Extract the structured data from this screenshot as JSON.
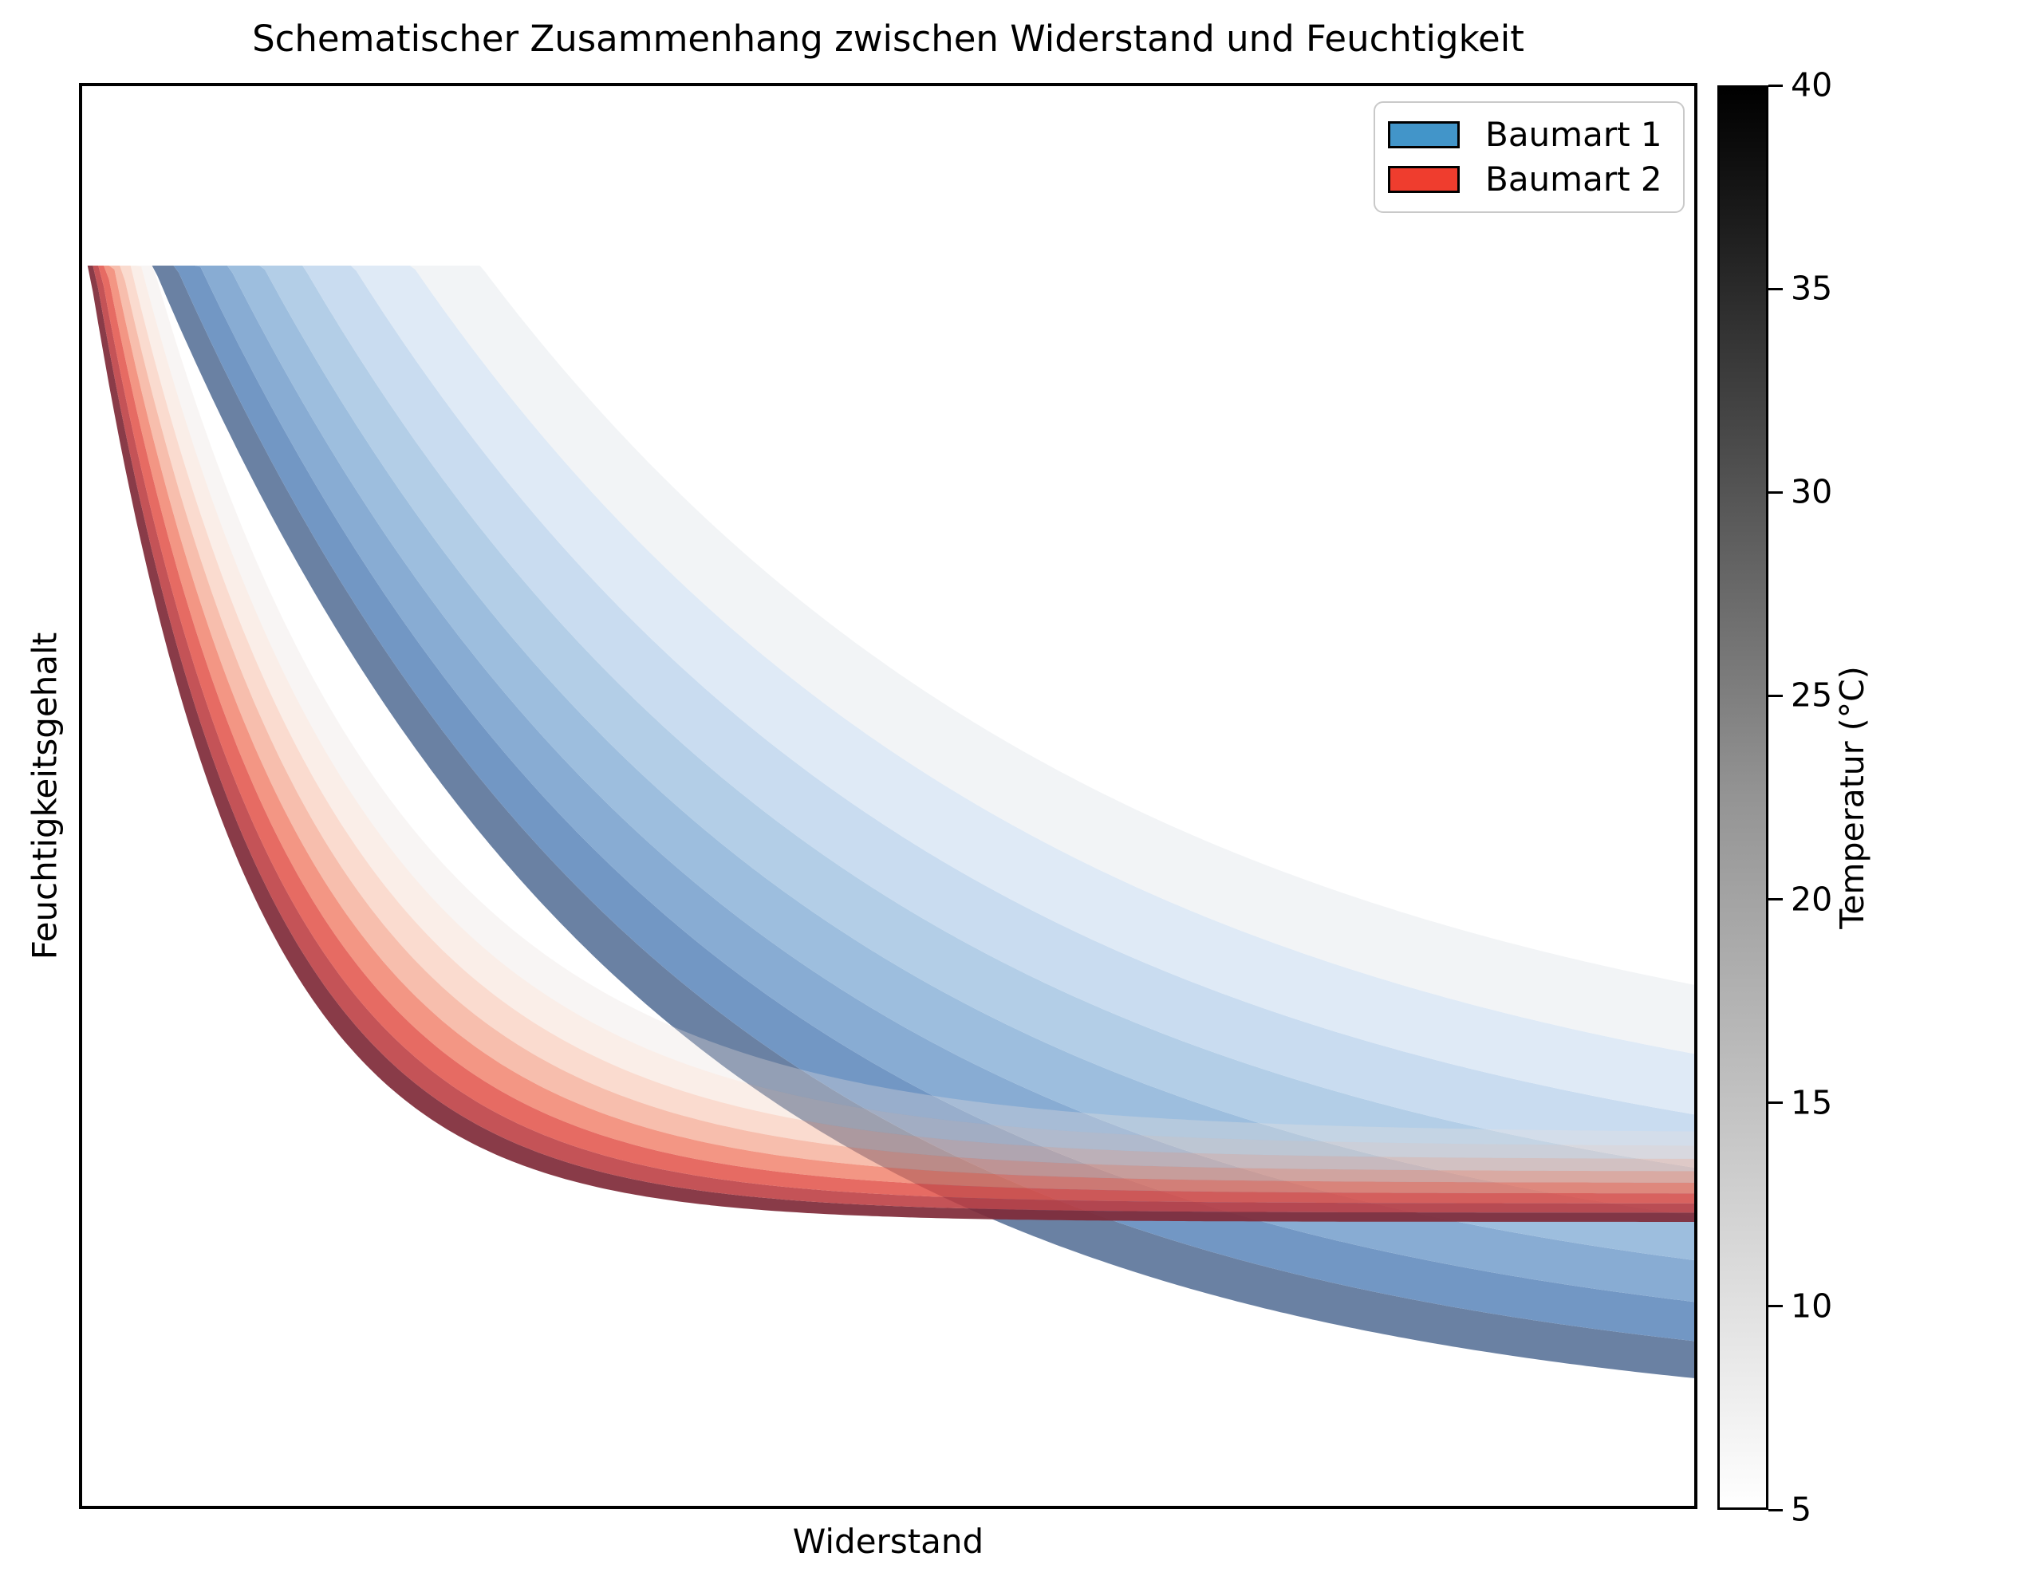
{
  "title": "Schematischer Zusammenhang zwischen Widerstand und Feuchtigkeit",
  "x_axis": {
    "label": "Widerstand",
    "ticks": []
  },
  "y_axis": {
    "label": "Feuchtigkeitsgehalt",
    "ticks": []
  },
  "legend": {
    "items": [
      {
        "label": "Baumart 1",
        "swatch_color": "#4295c9"
      },
      {
        "label": "Baumart 2",
        "swatch_color": "#ef3d2e"
      }
    ]
  },
  "colorbar": {
    "label": "Temperatur (°C)",
    "min": 5,
    "max": 40,
    "ticks": [
      5,
      10,
      15,
      20,
      25,
      30,
      35,
      40
    ],
    "gradient_top": "#000000",
    "gradient_mid": "#949494",
    "gradient_bottom": "#ffffff"
  },
  "chart_data": {
    "type": "area",
    "title": "Schematischer Zusammenhang zwischen Widerstand und Feuchtigkeit",
    "xlabel": "Widerstand",
    "ylabel": "Feuchtigkeitsgehalt",
    "axes_numeric_ticks": false,
    "x_range_normalized": [
      0,
      1
    ],
    "y_range_normalized": [
      0,
      1
    ],
    "cap_v": 0.1264,
    "curve_model": "v(u) = v_asym - (v_asym - cap_v) * exp(-k * max(0, u - u0)); u,v normalized, v measured from plot top",
    "temperature_levels_dark_to_light": [
      40,
      35,
      30,
      25,
      20,
      15,
      10,
      5
    ],
    "series": [
      {
        "name": "Baumart 1",
        "key": "baumart-1",
        "legend_color": "#4295c9",
        "curves": {
          "u0": [
            0.044,
            0.058,
            0.073,
            0.091,
            0.112,
            0.137,
            0.168,
            0.205,
            0.247
          ],
          "v_asym": [
            0.945,
            0.923,
            0.9,
            0.876,
            0.851,
            0.824,
            0.795,
            0.762,
            0.72
          ],
          "k": [
            3.3,
            3.2,
            3.1,
            3.0,
            2.9,
            2.8,
            2.7,
            2.6,
            2.55
          ]
        },
        "bands": [
          {
            "temp_level": 40,
            "color": "#6a81a3",
            "alpha": 1
          },
          {
            "temp_level": 35,
            "color": "#7297c4",
            "alpha": 1
          },
          {
            "temp_level": 30,
            "color": "#88acd3",
            "alpha": 1
          },
          {
            "temp_level": 25,
            "color": "#9dbede",
            "alpha": 1
          },
          {
            "temp_level": 20,
            "color": "#b3cee7",
            "alpha": 1
          },
          {
            "temp_level": 15,
            "color": "#c9dcf0",
            "alpha": 1
          },
          {
            "temp_level": 10,
            "color": "#dfeaf6",
            "alpha": 1
          },
          {
            "temp_level": 5,
            "color": "#f2f4f6",
            "alpha": 1
          }
        ]
      },
      {
        "name": "Baumart 2",
        "key": "baumart-2",
        "legend_color": "#ef3d2e",
        "curves": {
          "u0": [
            0.004,
            0.0075,
            0.011,
            0.015,
            0.0195,
            0.0245,
            0.03,
            0.0365,
            0.044
          ],
          "v_asym": [
            0.8,
            0.7935,
            0.787,
            0.78,
            0.7725,
            0.7645,
            0.756,
            0.747,
            0.7375
          ],
          "k": [
            10.5,
            10.0,
            9.5,
            9.0,
            8.5,
            8.0,
            7.5,
            7.0,
            6.5
          ]
        },
        "bands": [
          {
            "temp_level": 40,
            "color": "#7f2a38",
            "alpha": 0.92
          },
          {
            "temp_level": 35,
            "color": "#bb3a3e",
            "alpha": 0.87
          },
          {
            "temp_level": 30,
            "color": "#e14b41",
            "alpha": 0.82
          },
          {
            "temp_level": 25,
            "color": "#ee6e54",
            "alpha": 0.72
          },
          {
            "temp_level": 20,
            "color": "#f29376",
            "alpha": 0.6
          },
          {
            "temp_level": 15,
            "color": "#f4b49a",
            "alpha": 0.48
          },
          {
            "temp_level": 10,
            "color": "#f3d1c2",
            "alpha": 0.38
          },
          {
            "temp_level": 5,
            "color": "#e8e0dd",
            "alpha": 0.32
          }
        ]
      }
    ]
  }
}
